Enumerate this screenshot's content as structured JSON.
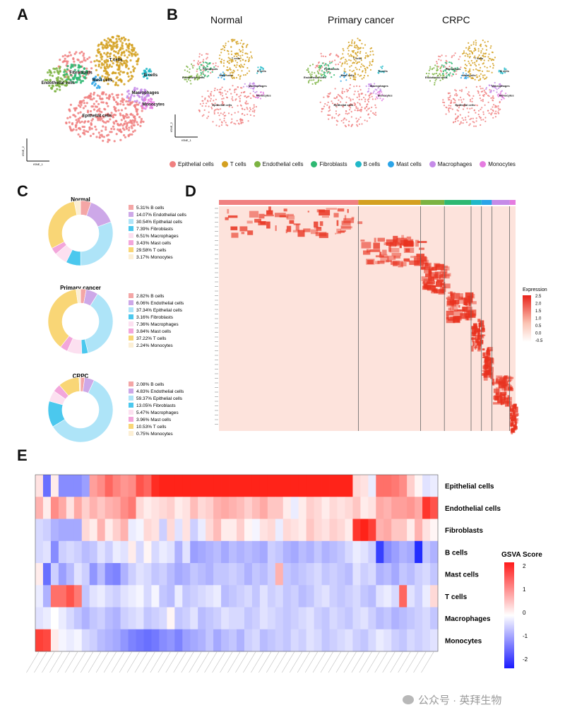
{
  "panels": {
    "a": "A",
    "b": "B",
    "c": "C",
    "d": "D",
    "e": "E"
  },
  "panelB": {
    "titles": [
      "Normal",
      "Primary cancer",
      "CRPC"
    ]
  },
  "tsne": {
    "labels": [
      "T cells",
      "Epithelial cells",
      "Endothelial cells",
      "Fibroblasts",
      "B cells",
      "Mast cells",
      "Macrophages",
      "Monocytes"
    ],
    "axis_x": "tSNE_1",
    "axis_y": "tSNE_2"
  },
  "celltypes": [
    {
      "name": "Epithelial cells",
      "color": "#F08080"
    },
    {
      "name": "T cells",
      "color": "#D4A020"
    },
    {
      "name": "Endothelial cells",
      "color": "#7CB342"
    },
    {
      "name": "Fibroblasts",
      "color": "#2EB872"
    },
    {
      "name": "B cells",
      "color": "#20B8C8"
    },
    {
      "name": "Mast cells",
      "color": "#2BA4E8"
    },
    {
      "name": "Macrophages",
      "color": "#C58BE8"
    },
    {
      "name": "Monocytes",
      "color": "#E57CE0"
    }
  ],
  "chart_data": [
    {
      "type": "pie",
      "title": "Normal",
      "hole": true,
      "slices": [
        {
          "label": "B cells",
          "value": 5.31,
          "text": "5.31% B cells",
          "color": "#F4A6A6"
        },
        {
          "label": "Endothelial cells",
          "value": 14.07,
          "text": "14.07% Endothelial cells",
          "color": "#CDA8E8"
        },
        {
          "label": "Epithelial cells",
          "value": 30.54,
          "text": "30.54% Epithelial cells",
          "color": "#AEE4F8"
        },
        {
          "label": "Fibroblasts",
          "value": 7.39,
          "text": "7.39% Fibroblasts",
          "color": "#4BC8EE"
        },
        {
          "label": "Macrophages",
          "value": 6.51,
          "text": "6.51% Macrophages",
          "color": "#FCE0F0"
        },
        {
          "label": "Mast cells",
          "value": 3.43,
          "text": "3.43% Mast cells",
          "color": "#F3A6DB"
        },
        {
          "label": "T cells",
          "value": 29.58,
          "text": "29.58% T cells",
          "color": "#F9D676"
        },
        {
          "label": "Monocytes",
          "value": 3.17,
          "text": "3.17% Monocytes",
          "color": "#FCEFD4"
        }
      ]
    },
    {
      "type": "pie",
      "title": "Primary cancer",
      "hole": true,
      "slices": [
        {
          "label": "B cells",
          "value": 2.82,
          "text": "2.82% B cells",
          "color": "#F4A6A6"
        },
        {
          "label": "Endothelial cells",
          "value": 6.06,
          "text": "6.06% Endothelial cells",
          "color": "#CDA8E8"
        },
        {
          "label": "Epithelial cells",
          "value": 37.34,
          "text": "37.34% Epithelial cells",
          "color": "#AEE4F8"
        },
        {
          "label": "Fibroblasts",
          "value": 3.16,
          "text": "3.16% Fibroblasts",
          "color": "#4BC8EE"
        },
        {
          "label": "Macrophages",
          "value": 7.36,
          "text": "7.36% Macrophages",
          "color": "#FCE0F0"
        },
        {
          "label": "Mast cells",
          "value": 3.84,
          "text": "3.84% Mast cells",
          "color": "#F3A6DB"
        },
        {
          "label": "T cells",
          "value": 37.22,
          "text": "37.22% T cells",
          "color": "#F9D676"
        },
        {
          "label": "Monocytes",
          "value": 2.24,
          "text": "2.24% Monocytes",
          "color": "#FCEFD4"
        }
      ]
    },
    {
      "type": "pie",
      "title": "CRPC",
      "hole": true,
      "slices": [
        {
          "label": "B cells",
          "value": 2.08,
          "text": "2.08% B cells",
          "color": "#F4A6A6"
        },
        {
          "label": "Endothelial cells",
          "value": 4.83,
          "text": "4.83% Endothelial cells",
          "color": "#CDA8E8"
        },
        {
          "label": "Epithelial cells",
          "value": 59.37,
          "text": "59.37% Epithelial cells",
          "color": "#AEE4F8"
        },
        {
          "label": "Fibroblasts",
          "value": 13.05,
          "text": "13.05% Fibroblasts",
          "color": "#4BC8EE"
        },
        {
          "label": "Macrophages",
          "value": 5.47,
          "text": "5.47% Macrophages",
          "color": "#FCE0F0"
        },
        {
          "label": "Mast cells",
          "value": 3.96,
          "text": "3.96% Mast cells",
          "color": "#F3A6DB"
        },
        {
          "label": "T cells",
          "value": 10.53,
          "text": "10.53% T cells",
          "color": "#F9D676"
        },
        {
          "label": "Monocytes",
          "value": 0.75,
          "text": "0.75% Monocytes",
          "color": "#FCEFD4"
        }
      ]
    },
    {
      "type": "heatmap",
      "title": "Expression",
      "colorbar": {
        "label": "Expression",
        "min": -0.5,
        "max": 2.5,
        "ticks": [
          "2.5",
          "2.0",
          "1.5",
          "1.0",
          "0.5",
          "0.0",
          "-0.5"
        ]
      },
      "column_groups": [
        {
          "name": "Epithelial cells",
          "fraction": 0.47,
          "color": "#F08080"
        },
        {
          "name": "T cells",
          "fraction": 0.21,
          "color": "#D4A020"
        },
        {
          "name": "Endothelial cells",
          "fraction": 0.08,
          "color": "#7CB342"
        },
        {
          "name": "Fibroblasts",
          "fraction": 0.09,
          "color": "#2EB872"
        },
        {
          "name": "B cells",
          "fraction": 0.035,
          "color": "#20B8C8"
        },
        {
          "name": "Mast cells",
          "fraction": 0.035,
          "color": "#2BA4E8"
        },
        {
          "name": "Macrophages",
          "fraction": 0.06,
          "color": "#C58BE8"
        },
        {
          "name": "Monocytes",
          "fraction": 0.02,
          "color": "#E57CE0"
        }
      ]
    },
    {
      "type": "heatmap",
      "title": "GSVA Score",
      "colorbar": {
        "label": "GSVA Score",
        "min": -2,
        "max": 2,
        "ticks": [
          "2",
          "1",
          "0",
          "-1",
          "-2"
        ]
      },
      "rows": [
        "Epithelial cells",
        "Endothelial cells",
        "Fibroblasts",
        "B cells",
        "Mast cells",
        "T cells",
        "Macrophages",
        "Monocytes"
      ],
      "n_cols": 52,
      "values": [
        [
          0.3,
          -1.5,
          0.2,
          -1.2,
          -1.2,
          -1.2,
          -1.0,
          1.0,
          1.2,
          1.6,
          1.3,
          1.1,
          1.2,
          1.8,
          1.6,
          2.2,
          2.3,
          2.3,
          2.3,
          2.3,
          2.3,
          2.3,
          2.3,
          2.3,
          2.3,
          2.3,
          2.3,
          2.3,
          2.3,
          2.3,
          2.3,
          2.3,
          2.3,
          2.3,
          2.3,
          2.3,
          2.3,
          2.3,
          2.3,
          2.3,
          2.3,
          0.4,
          0.3,
          -0.2,
          1.5,
          1.5,
          1.4,
          1.2,
          0.5,
          0.1,
          -0.3,
          -0.2
        ],
        [
          0.8,
          0.2,
          1.2,
          0.9,
          0.3,
          0.9,
          0.5,
          0.8,
          0.6,
          0.8,
          0.9,
          1.2,
          1.4,
          0.4,
          0.2,
          0.3,
          0.4,
          0.5,
          0.2,
          0.3,
          0.7,
          0.4,
          0.5,
          0.8,
          0.9,
          0.8,
          0.7,
          0.5,
          0.7,
          0.9,
          0.6,
          0.6,
          0.2,
          -0.2,
          0.2,
          0.5,
          0.4,
          0.2,
          0.4,
          0.3,
          0.4,
          0.6,
          0.2,
          0.3,
          0.9,
          0.8,
          1.0,
          1.0,
          1.1,
          0.9,
          2.1,
          1.8
        ],
        [
          -0.4,
          -0.5,
          -0.8,
          -0.9,
          -0.9,
          -0.9,
          0.4,
          0.2,
          0.8,
          0.2,
          0.5,
          0.8,
          -0.2,
          -0.1,
          0.4,
          0.3,
          -0.5,
          0.4,
          -0.3,
          0.3,
          -0.5,
          -0.2,
          0.4,
          0.7,
          0.2,
          0.2,
          0.5,
          0.1,
          -0.1,
          0.3,
          0.4,
          -0.2,
          0.4,
          0.3,
          0.2,
          0.6,
          0.4,
          0.3,
          0.5,
          0.4,
          0.2,
          2.1,
          2.3,
          2.0,
          0.8,
          0.9,
          0.6,
          0.6,
          0.2,
          0.8,
          0.3,
          0.1
        ],
        [
          -0.4,
          -0.3,
          -1.2,
          -0.5,
          -0.4,
          -0.5,
          -0.7,
          -0.6,
          -0.3,
          -0.5,
          -0.2,
          -0.3,
          0.2,
          -0.4,
          0.1,
          -0.4,
          -0.2,
          -0.3,
          -0.8,
          -0.3,
          -1.0,
          -0.9,
          -0.8,
          -0.7,
          -0.9,
          -0.7,
          -0.8,
          -0.7,
          -0.8,
          -0.9,
          -0.5,
          -0.6,
          -0.8,
          -0.9,
          -0.7,
          -0.8,
          -0.6,
          -0.8,
          -0.7,
          -0.6,
          -0.4,
          -0.2,
          -0.3,
          -0.5,
          -2.0,
          -1.2,
          -1.0,
          -0.8,
          -0.9,
          -2.2,
          -0.6,
          -0.8
        ],
        [
          0.2,
          -1.5,
          -0.5,
          -1.0,
          -0.7,
          -0.3,
          -0.5,
          -1.1,
          -0.7,
          -1.2,
          -1.3,
          -0.8,
          -0.5,
          -0.3,
          -0.4,
          -0.6,
          -0.5,
          -0.7,
          -0.9,
          -0.8,
          -0.6,
          -0.7,
          -0.8,
          -0.6,
          -0.6,
          -0.5,
          -0.6,
          -0.8,
          -0.6,
          -0.7,
          -0.5,
          0.8,
          -0.6,
          -0.7,
          -0.6,
          -0.5,
          -0.4,
          -0.6,
          -0.5,
          -0.6,
          -0.7,
          -0.3,
          -0.5,
          -0.4,
          -0.8,
          -0.7,
          -0.9,
          -0.6,
          -0.7,
          -0.5,
          -0.4,
          -0.6
        ],
        [
          -0.2,
          -0.8,
          1.5,
          1.5,
          1.8,
          1.4,
          -0.6,
          -0.3,
          -0.2,
          -0.4,
          -0.5,
          -0.3,
          -0.2,
          -0.1,
          -0.4,
          -0.1,
          -0.6,
          -0.7,
          -0.2,
          -0.6,
          -0.5,
          -0.4,
          -0.3,
          -0.2,
          -0.7,
          -0.6,
          -0.5,
          -0.4,
          -0.6,
          -0.3,
          -0.5,
          -0.4,
          -0.6,
          -0.5,
          -0.7,
          -0.6,
          -0.4,
          -0.3,
          -0.5,
          -0.6,
          -0.5,
          -0.4,
          -0.6,
          -0.7,
          -0.3,
          -0.2,
          -0.4,
          1.6,
          -0.3,
          -0.5,
          -0.2,
          0.4
        ],
        [
          -0.3,
          -0.2,
          0.0,
          -0.2,
          -0.4,
          -0.6,
          -0.8,
          -0.6,
          -0.5,
          -0.7,
          -0.8,
          -0.5,
          -0.4,
          -0.3,
          -0.6,
          -0.5,
          -0.4,
          0.1,
          -0.6,
          -0.5,
          -0.3,
          -0.7,
          -0.6,
          -0.5,
          -0.3,
          -0.4,
          -0.4,
          -0.6,
          -0.5,
          -0.3,
          -0.4,
          -0.5,
          -0.6,
          -0.5,
          -0.4,
          -0.3,
          -0.5,
          -0.6,
          -0.4,
          -0.5,
          -0.6,
          -0.4,
          -0.3,
          -0.5,
          -0.7,
          -0.6,
          -0.8,
          -0.7,
          -0.6,
          -0.5,
          -0.4,
          -0.6
        ],
        [
          2.0,
          1.9,
          0.2,
          -0.1,
          -0.2,
          -0.1,
          -0.4,
          -0.5,
          -0.7,
          -0.8,
          -0.9,
          -1.1,
          -1.3,
          -1.4,
          -1.5,
          -1.4,
          -1.2,
          -1.1,
          -1.3,
          -1.0,
          -0.9,
          -0.8,
          -0.6,
          -0.9,
          -0.7,
          -0.6,
          -0.8,
          -0.5,
          -0.4,
          -0.7,
          -0.6,
          -0.5,
          -0.6,
          -0.4,
          -0.5,
          -0.3,
          -0.4,
          -0.6,
          -0.5,
          -0.4,
          -0.3,
          -0.5,
          -0.6,
          -0.4,
          -0.2,
          -0.3,
          -0.5,
          -0.6,
          -0.4,
          -0.5,
          -0.4,
          -0.3
        ]
      ]
    }
  ],
  "watermark": "公众号 · 英拜生物"
}
